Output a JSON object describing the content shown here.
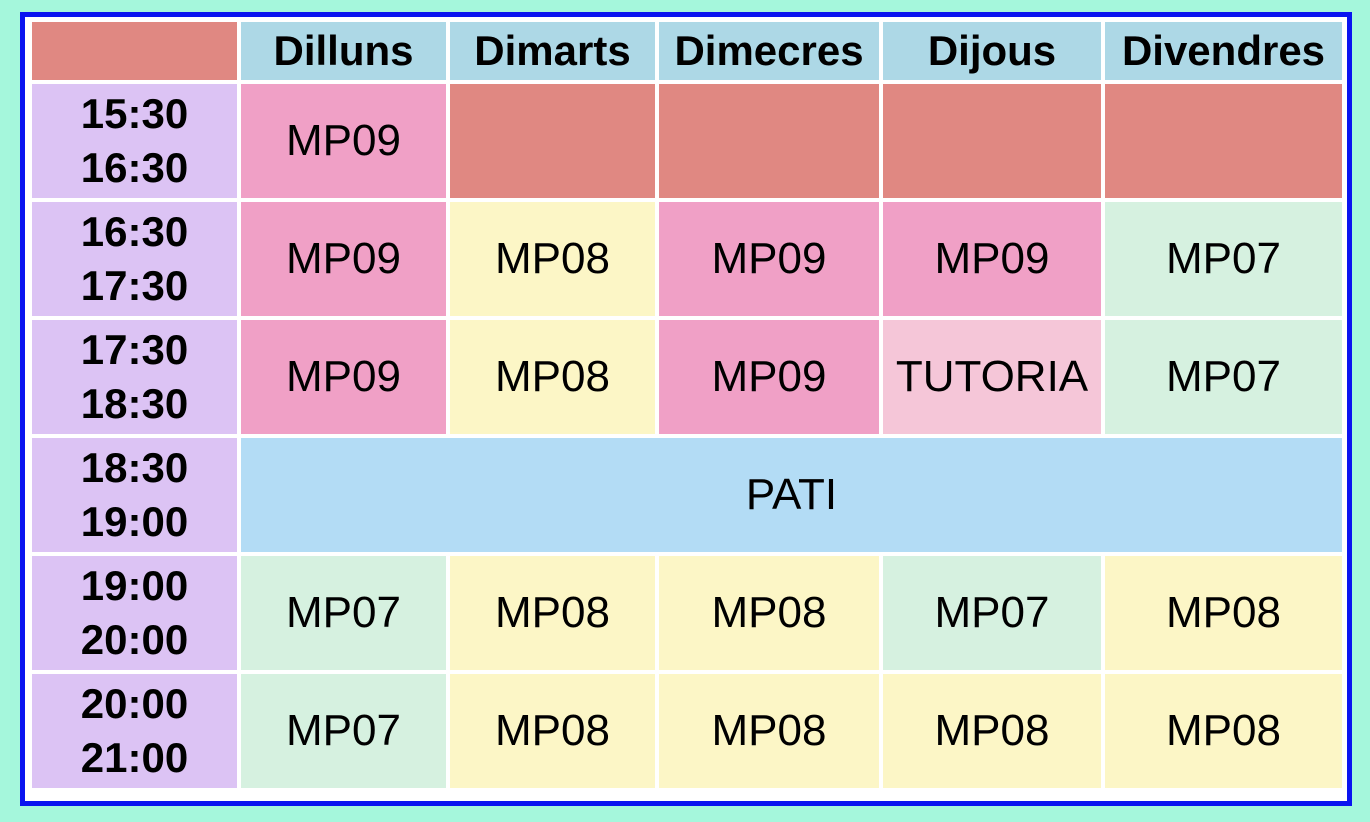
{
  "days": [
    "Dilluns",
    "Dimarts",
    "Dimecres",
    "Dijous",
    "Divendres"
  ],
  "rows": [
    {
      "start": "15:30",
      "end": "16:30",
      "cells": [
        {
          "text": "MP09"
        },
        {
          "text": ""
        },
        {
          "text": ""
        },
        {
          "text": ""
        },
        {
          "text": ""
        }
      ]
    },
    {
      "start": "16:30",
      "end": "17:30",
      "cells": [
        {
          "text": "MP09"
        },
        {
          "text": "MP08"
        },
        {
          "text": "MP09"
        },
        {
          "text": "MP09"
        },
        {
          "text": "MP07"
        }
      ]
    },
    {
      "start": "17:30",
      "end": "18:30",
      "cells": [
        {
          "text": "MP09"
        },
        {
          "text": "MP08"
        },
        {
          "text": "MP09"
        },
        {
          "text": "TUTORIA"
        },
        {
          "text": "MP07"
        }
      ]
    },
    {
      "start": "18:30",
      "end": "19:00",
      "cells": [
        {
          "text": "PATI"
        }
      ]
    },
    {
      "start": "19:00",
      "end": "20:00",
      "cells": [
        {
          "text": "MP07"
        },
        {
          "text": "MP08"
        },
        {
          "text": "MP08"
        },
        {
          "text": "MP07"
        },
        {
          "text": "MP08"
        }
      ]
    },
    {
      "start": "20:00",
      "end": "21:00",
      "cells": [
        {
          "text": "MP07"
        },
        {
          "text": "MP08"
        },
        {
          "text": "MP08"
        },
        {
          "text": "MP08"
        },
        {
          "text": "MP08"
        }
      ]
    }
  ],
  "colors": {
    "background": "#a5f7dc",
    "border": "#0a14f0",
    "header": "#add8e6",
    "time": "#dcc3f4",
    "empty": "#e08882",
    "MP09": "#f0a0c6",
    "MP08": "#fcf6c6",
    "MP07": "#d6f1e0",
    "TUTORIA": "#f5c6d8",
    "PATI": "#b3dcf5"
  }
}
